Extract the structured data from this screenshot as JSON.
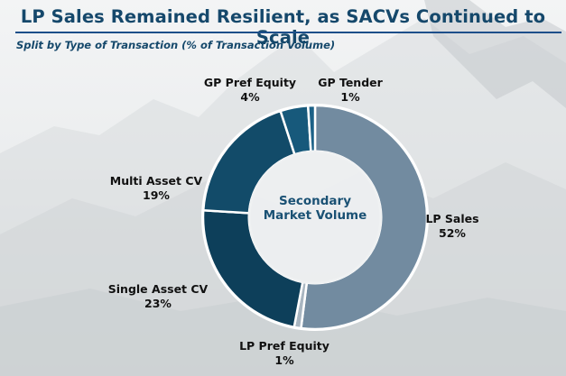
{
  "header": {
    "title": "LP Sales Remained Resilient, as SACVs Continued to Scale",
    "subtitle": "Split by Type of Transaction (% of Transaction Volume)"
  },
  "center_label": {
    "line1": "Secondary",
    "line2": "Market Volume"
  },
  "labels": [
    {
      "name": "LP Sales",
      "pct": "52%"
    },
    {
      "name": "LP Pref Equity",
      "pct": "1%"
    },
    {
      "name": "Single Asset CV",
      "pct": "23%"
    },
    {
      "name": "Multi Asset CV",
      "pct": "19%"
    },
    {
      "name": "GP Pref Equity",
      "pct": "4%"
    },
    {
      "name": "GP Tender",
      "pct": "1%"
    }
  ],
  "colors": {
    "title": "#15486b",
    "rule": "#1d4f8a",
    "lp_sales": "#728ba0",
    "lp_pref_equity": "#a9b6c1",
    "single_asset_cv": "#0d3f5a",
    "multi_asset_cv": "#124b69",
    "gp_pref_equity": "#17597b",
    "gp_tender": "#1c6187"
  },
  "chart_data": {
    "type": "pie",
    "subtype": "donut",
    "title": "LP Sales Remained Resilient, as SACVs Continued to Scale",
    "subtitle": "Split by Type of Transaction (% of Transaction Volume)",
    "center_text": "Secondary Market Volume",
    "categories": [
      "LP Sales",
      "LP Pref Equity",
      "Single Asset CV",
      "Multi Asset CV",
      "GP Pref Equity",
      "GP Tender"
    ],
    "values": [
      52,
      1,
      23,
      19,
      4,
      1
    ],
    "unit": "%",
    "start_angle": "12 o'clock, clockwise",
    "legend": "none (direct labels)"
  }
}
